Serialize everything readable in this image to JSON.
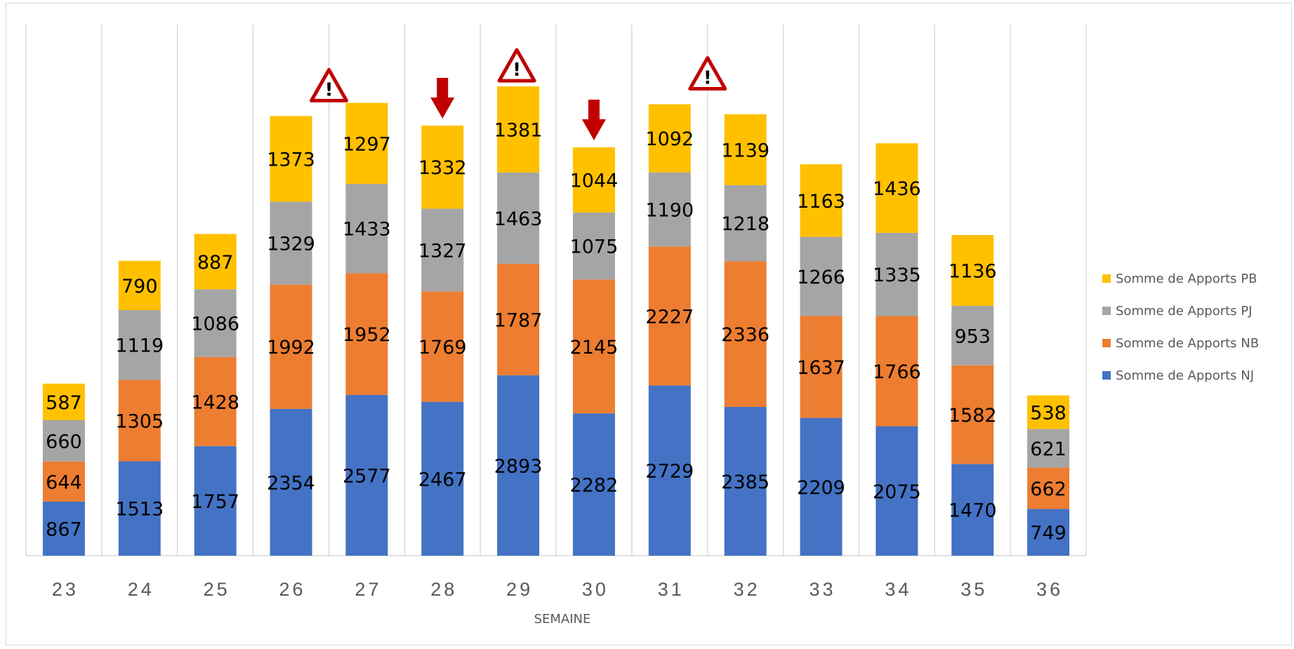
{
  "chart_data": {
    "type": "bar",
    "stacked": true,
    "title": "",
    "xlabel": "SEMAINE",
    "ylabel": "",
    "categories": [
      "23",
      "24",
      "25",
      "26",
      "27",
      "28",
      "29",
      "30",
      "31",
      "32",
      "33",
      "34",
      "35",
      "36"
    ],
    "series": [
      {
        "name": "Somme de Apports NJ",
        "color": "#4472C4",
        "values": [
          867,
          1513,
          1757,
          2354,
          2577,
          2467,
          2893,
          2282,
          2729,
          2385,
          2209,
          2075,
          1470,
          749
        ]
      },
      {
        "name": "Somme de Apports NB",
        "color": "#ED7D31",
        "values": [
          644,
          1305,
          1428,
          1992,
          1952,
          1769,
          1787,
          2145,
          2227,
          2336,
          1637,
          1766,
          1582,
          662
        ]
      },
      {
        "name": "Somme de Apports PJ",
        "color": "#A5A5A5",
        "values": [
          660,
          1119,
          1086,
          1329,
          1433,
          1327,
          1463,
          1075,
          1190,
          1218,
          1266,
          1335,
          953,
          621
        ]
      },
      {
        "name": "Somme de Apports PB",
        "color": "#FFC000",
        "values": [
          587,
          790,
          887,
          1373,
          1297,
          1332,
          1381,
          1044,
          1092,
          1139,
          1163,
          1436,
          1136,
          538
        ]
      }
    ],
    "legend_order": [
      "Somme de Apports PB",
      "Somme de Apports PJ",
      "Somme de Apports NB",
      "Somme de Apports NJ"
    ],
    "legend_position": "right",
    "ylim": [
      0,
      7500
    ],
    "grid": "vertical",
    "annotations": [
      {
        "category": "26",
        "type": "warning-triangle-icon"
      },
      {
        "category": "28",
        "type": "down-arrow-icon"
      },
      {
        "category": "29",
        "type": "warning-triangle-icon"
      },
      {
        "category": "30",
        "type": "down-arrow-icon"
      },
      {
        "category": "31",
        "type": "warning-triangle-icon"
      }
    ],
    "annotation_color": "#C00000",
    "show_data_labels": true
  }
}
